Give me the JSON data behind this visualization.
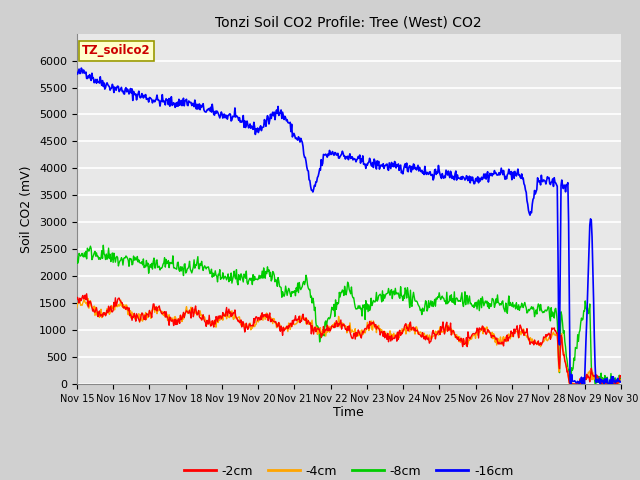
{
  "title": "Tonzi Soil CO2 Profile: Tree (West) CO2",
  "ylabel": "Soil CO2 (mV)",
  "xlabel": "Time",
  "legend_label": "TZ_soilco2",
  "legend_entries": [
    "-2cm",
    "-4cm",
    "-8cm",
    "-16cm"
  ],
  "colors": {
    "-2cm": "#ff0000",
    "-4cm": "#ffa500",
    "-8cm": "#00cc00",
    "-16cm": "#0000ff"
  },
  "ylim": [
    0,
    6500
  ],
  "fig_facecolor": "#d0d0d0",
  "plot_facecolor": "#e8e8e8",
  "x_start": 15,
  "x_end": 30,
  "x_ticks": [
    15,
    16,
    17,
    18,
    19,
    20,
    21,
    22,
    23,
    24,
    25,
    26,
    27,
    28,
    29,
    30
  ],
  "x_tick_labels": [
    "Nov 15",
    "Nov 16",
    "Nov 17",
    "Nov 18",
    "Nov 19",
    "Nov 20",
    "Nov 21",
    "Nov 22",
    "Nov 23",
    "Nov 24",
    "Nov 25",
    "Nov 26",
    "Nov 27",
    "Nov 28",
    "Nov 29",
    "Nov 30"
  ],
  "y_ticks": [
    0,
    500,
    1000,
    1500,
    2000,
    2500,
    3000,
    3500,
    4000,
    4500,
    5000,
    5500,
    6000
  ]
}
